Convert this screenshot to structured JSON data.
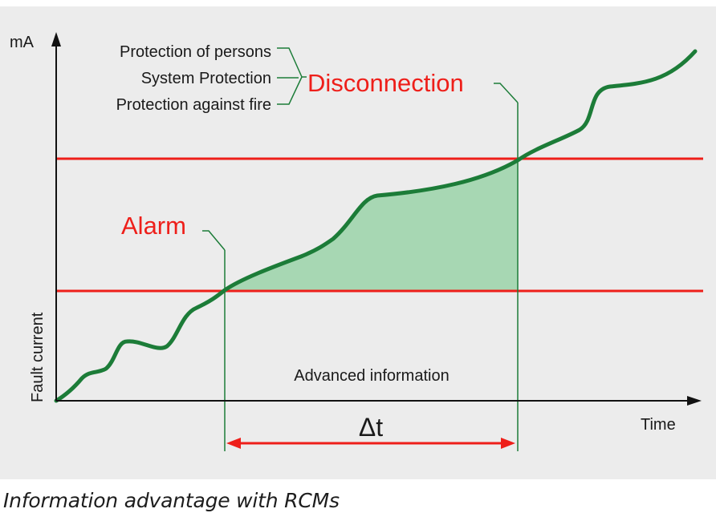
{
  "diagram": {
    "y_unit": "mA",
    "y_axis_label": "Fault current",
    "x_axis_label": "Time",
    "protection_labels": [
      "Protection of persons",
      "System Protection",
      "Protection against fire"
    ],
    "disconnection_label": "Disconnection",
    "alarm_label": "Alarm",
    "advanced_info_label": "Advanced information",
    "delta_label": "Δt"
  },
  "caption": "Information advantage with RCMs",
  "colors": {
    "background": "#ececec",
    "threshold_red": "#ee1f1a",
    "curve_green": "#1c7c38",
    "fill_green": "#a7d7b3",
    "axis": "#111111"
  }
}
